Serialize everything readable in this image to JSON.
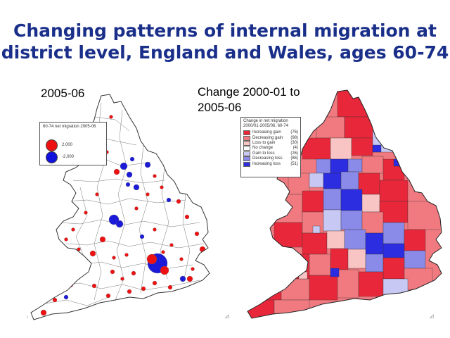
{
  "title": {
    "line1": "Changing patterns of internal migration at",
    "line2": "district level, England and Wales, ages 60-74"
  },
  "left_map": {
    "caption": "2005-06",
    "legend": {
      "title": "60-74 net migration 2005-06",
      "items": [
        {
          "label": "2,000",
          "color": "#ee1111"
        },
        {
          "label": "-2,000",
          "color": "#1111dd"
        }
      ]
    }
  },
  "right_map": {
    "caption_line1": "Change 2000-01 to",
    "caption_line2": "2005-06",
    "legend": {
      "title": "Change in net migration 2000/01-2005/06, 60-74",
      "items": [
        {
          "label": "Increasing gain",
          "count": "(76)",
          "color": "#e8283a"
        },
        {
          "label": "Decreasing gain",
          "count": "(98)",
          "color": "#f07a80"
        },
        {
          "label": "Loss to gain",
          "count": "(30)",
          "color": "#f8c4c4"
        },
        {
          "label": "No change",
          "count": "(4)",
          "color": "#ffffff"
        },
        {
          "label": "Gain to loss",
          "count": "(26)",
          "color": "#c8c8f4"
        },
        {
          "label": "Decreasing loss",
          "count": "(86)",
          "color": "#8a8ae8"
        },
        {
          "label": "Increasing loss",
          "count": "(51)",
          "color": "#2c2ce0"
        }
      ]
    }
  }
}
